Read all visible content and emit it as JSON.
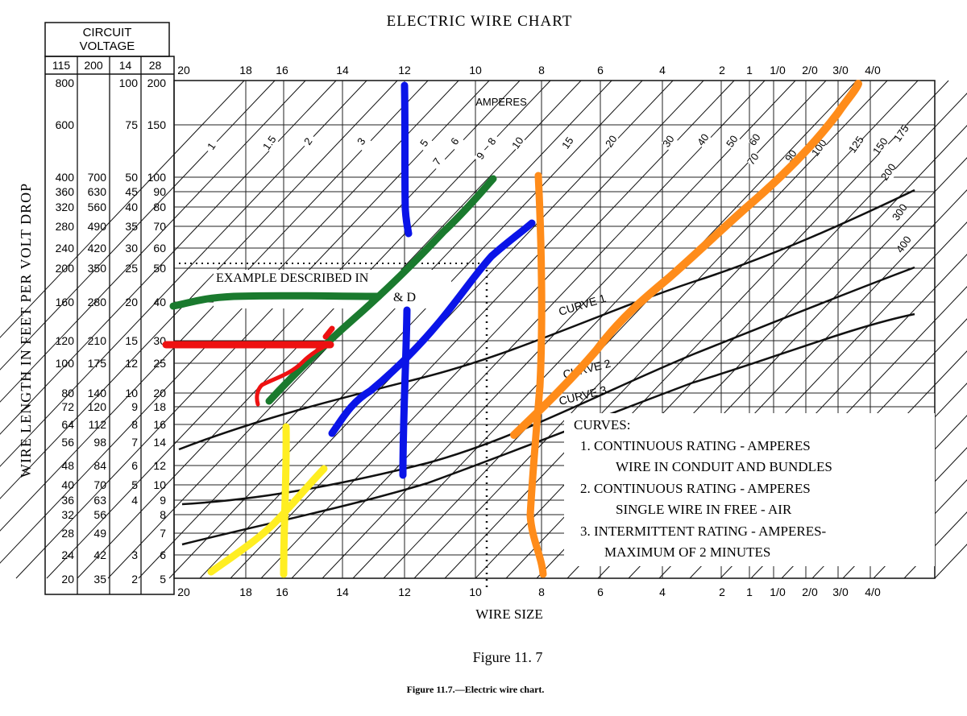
{
  "chart_data": {
    "type": "line",
    "title": "ELECTRIC WIRE CHART",
    "xlabel": "WIRE SIZE",
    "ylabel": "WIRE LENGTH IN FEET PER VOLT DROP",
    "x_ticks": [
      "20",
      "18",
      "16",
      "14",
      "12",
      "10",
      "8",
      "6",
      "4",
      "2",
      "1",
      "1/0",
      "2/0",
      "3/0",
      "4/0"
    ],
    "voltage_header": {
      "title_line1": "CIRCUIT",
      "title_line2": "VOLTAGE",
      "columns": [
        "115",
        "200",
        "14",
        "28"
      ],
      "rows": [
        [
          "800",
          "",
          "100",
          "200"
        ],
        [
          "600",
          "",
          "75",
          "150"
        ],
        [
          "400",
          "700",
          "50",
          "100"
        ],
        [
          "360",
          "630",
          "45",
          "90"
        ],
        [
          "320",
          "560",
          "40",
          "80"
        ],
        [
          "280",
          "490",
          "35",
          "70"
        ],
        [
          "240",
          "420",
          "30",
          "60"
        ],
        [
          "200",
          "350",
          "25",
          "50"
        ],
        [
          "160",
          "280",
          "20",
          "40"
        ],
        [
          "120",
          "210",
          "15",
          "30"
        ],
        [
          "100",
          "175",
          "12",
          "25"
        ],
        [
          "80",
          "140",
          "10",
          "20"
        ],
        [
          "72",
          "120",
          "9",
          "18"
        ],
        [
          "64",
          "112",
          "8",
          "16"
        ],
        [
          "56",
          "98",
          "7",
          "14"
        ],
        [
          "48",
          "84",
          "6",
          "12"
        ],
        [
          "40",
          "70",
          "5",
          "10"
        ],
        [
          "36",
          "63",
          "4",
          "9"
        ],
        [
          "32",
          "56",
          "",
          "8"
        ],
        [
          "28",
          "49",
          "",
          "7"
        ],
        [
          "24",
          "42",
          "3",
          "6"
        ],
        [
          "20",
          "35",
          "2",
          "5"
        ]
      ]
    },
    "ampere_lines": [
      "1",
      "1.5",
      "2",
      "3",
      "5",
      "6",
      "7",
      "8",
      "9",
      "10",
      "15",
      "20",
      "30",
      "40",
      "50",
      "60",
      "70",
      "90",
      "100",
      "125",
      "150",
      "175",
      "200",
      "300",
      "400"
    ],
    "amperes_label": "AMPERES",
    "curves": [
      {
        "name": "CURVE 1"
      },
      {
        "name": "CURVE 2"
      },
      {
        "name": "CURVE 3"
      }
    ],
    "example_label_line1": "EXAMPLE DESCRIBED IN",
    "example_label_line2": "& D",
    "curves_legend": {
      "heading": "CURVES:",
      "items": [
        "1.  CONTINUOUS RATING - AMPERES",
        "WIRE IN CONDUIT AND BUNDLES",
        "2.  CONTINUOUS RATING - AMPERES",
        "SINGLE WIRE IN FREE - AIR",
        "3.  INTERMITTENT RATING - AMPERES-",
        "MAXIMUM OF 2 MINUTES"
      ]
    },
    "annotation_colors": {
      "green": "#1a7a2e",
      "red": "#ee1111",
      "blue": "#0a14e8",
      "yellow": "#ffee22",
      "orange": "#ff8c1a"
    }
  },
  "captions": {
    "figure": "Figure 11. 7",
    "caption_bold": "Figure 11.7.",
    "caption_rest": "—Electric wire chart."
  }
}
